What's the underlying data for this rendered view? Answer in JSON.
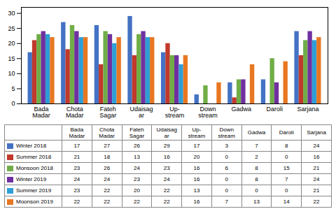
{
  "chart_data": {
    "type": "bar",
    "categories": [
      "Bada\nMadar",
      "Chota\nMadar",
      "Fateh\nSagar",
      "Udaisag\nar",
      "Up-\nstream",
      "Down\nstream",
      "Gadwa",
      "Daroli",
      "Sarjana"
    ],
    "series": [
      {
        "name": "Winter 2018",
        "color": "#4472C4",
        "values": [
          17,
          27,
          26,
          29,
          17,
          3,
          7,
          8,
          24
        ]
      },
      {
        "name": "Summer 2018",
        "color": "#C0392B",
        "values": [
          21,
          18,
          13,
          16,
          20,
          0,
          2,
          0,
          16
        ]
      },
      {
        "name": "Monsoon 2018",
        "color": "#70AD47",
        "values": [
          23,
          26,
          24,
          23,
          16,
          6,
          8,
          15,
          21
        ]
      },
      {
        "name": "Winter 2019",
        "color": "#7030A0",
        "values": [
          24,
          24,
          23,
          24,
          16,
          0,
          8,
          7,
          24
        ]
      },
      {
        "name": "Summer 2019",
        "color": "#2E9ED6",
        "values": [
          23,
          22,
          20,
          22,
          13,
          0,
          0,
          0,
          21
        ]
      },
      {
        "name": "Moonson 2019",
        "color": "#E87722",
        "values": [
          22,
          22,
          22,
          22,
          16,
          7,
          13,
          14,
          22
        ]
      }
    ],
    "ylim": [
      0,
      32
    ],
    "yticks": [
      0,
      5,
      10,
      15,
      20,
      25,
      30
    ],
    "legend": "bottom"
  }
}
